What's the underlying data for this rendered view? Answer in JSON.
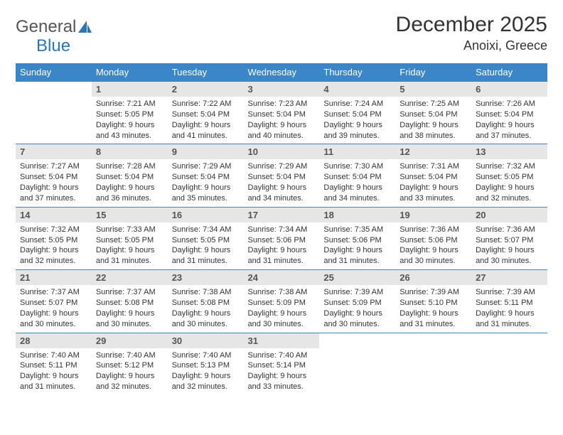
{
  "brand": {
    "text1": "General",
    "text2": "Blue"
  },
  "title": "December 2025",
  "location": "Anoixi, Greece",
  "colors": {
    "header_bg": "#3a86c8",
    "header_fg": "#ffffff",
    "daynum_bg": "#e6e6e6",
    "rule": "#3a86c8",
    "brand_gray": "#555555",
    "brand_blue": "#2a76b8"
  },
  "day_headers": [
    "Sunday",
    "Monday",
    "Tuesday",
    "Wednesday",
    "Thursday",
    "Friday",
    "Saturday"
  ],
  "weeks": [
    [
      null,
      {
        "n": "1",
        "sr": "7:21 AM",
        "ss": "5:05 PM",
        "dl": "9 hours and 43 minutes."
      },
      {
        "n": "2",
        "sr": "7:22 AM",
        "ss": "5:04 PM",
        "dl": "9 hours and 41 minutes."
      },
      {
        "n": "3",
        "sr": "7:23 AM",
        "ss": "5:04 PM",
        "dl": "9 hours and 40 minutes."
      },
      {
        "n": "4",
        "sr": "7:24 AM",
        "ss": "5:04 PM",
        "dl": "9 hours and 39 minutes."
      },
      {
        "n": "5",
        "sr": "7:25 AM",
        "ss": "5:04 PM",
        "dl": "9 hours and 38 minutes."
      },
      {
        "n": "6",
        "sr": "7:26 AM",
        "ss": "5:04 PM",
        "dl": "9 hours and 37 minutes."
      }
    ],
    [
      {
        "n": "7",
        "sr": "7:27 AM",
        "ss": "5:04 PM",
        "dl": "9 hours and 37 minutes."
      },
      {
        "n": "8",
        "sr": "7:28 AM",
        "ss": "5:04 PM",
        "dl": "9 hours and 36 minutes."
      },
      {
        "n": "9",
        "sr": "7:29 AM",
        "ss": "5:04 PM",
        "dl": "9 hours and 35 minutes."
      },
      {
        "n": "10",
        "sr": "7:29 AM",
        "ss": "5:04 PM",
        "dl": "9 hours and 34 minutes."
      },
      {
        "n": "11",
        "sr": "7:30 AM",
        "ss": "5:04 PM",
        "dl": "9 hours and 34 minutes."
      },
      {
        "n": "12",
        "sr": "7:31 AM",
        "ss": "5:04 PM",
        "dl": "9 hours and 33 minutes."
      },
      {
        "n": "13",
        "sr": "7:32 AM",
        "ss": "5:05 PM",
        "dl": "9 hours and 32 minutes."
      }
    ],
    [
      {
        "n": "14",
        "sr": "7:32 AM",
        "ss": "5:05 PM",
        "dl": "9 hours and 32 minutes."
      },
      {
        "n": "15",
        "sr": "7:33 AM",
        "ss": "5:05 PM",
        "dl": "9 hours and 31 minutes."
      },
      {
        "n": "16",
        "sr": "7:34 AM",
        "ss": "5:05 PM",
        "dl": "9 hours and 31 minutes."
      },
      {
        "n": "17",
        "sr": "7:34 AM",
        "ss": "5:06 PM",
        "dl": "9 hours and 31 minutes."
      },
      {
        "n": "18",
        "sr": "7:35 AM",
        "ss": "5:06 PM",
        "dl": "9 hours and 31 minutes."
      },
      {
        "n": "19",
        "sr": "7:36 AM",
        "ss": "5:06 PM",
        "dl": "9 hours and 30 minutes."
      },
      {
        "n": "20",
        "sr": "7:36 AM",
        "ss": "5:07 PM",
        "dl": "9 hours and 30 minutes."
      }
    ],
    [
      {
        "n": "21",
        "sr": "7:37 AM",
        "ss": "5:07 PM",
        "dl": "9 hours and 30 minutes."
      },
      {
        "n": "22",
        "sr": "7:37 AM",
        "ss": "5:08 PM",
        "dl": "9 hours and 30 minutes."
      },
      {
        "n": "23",
        "sr": "7:38 AM",
        "ss": "5:08 PM",
        "dl": "9 hours and 30 minutes."
      },
      {
        "n": "24",
        "sr": "7:38 AM",
        "ss": "5:09 PM",
        "dl": "9 hours and 30 minutes."
      },
      {
        "n": "25",
        "sr": "7:39 AM",
        "ss": "5:09 PM",
        "dl": "9 hours and 30 minutes."
      },
      {
        "n": "26",
        "sr": "7:39 AM",
        "ss": "5:10 PM",
        "dl": "9 hours and 31 minutes."
      },
      {
        "n": "27",
        "sr": "7:39 AM",
        "ss": "5:11 PM",
        "dl": "9 hours and 31 minutes."
      }
    ],
    [
      {
        "n": "28",
        "sr": "7:40 AM",
        "ss": "5:11 PM",
        "dl": "9 hours and 31 minutes."
      },
      {
        "n": "29",
        "sr": "7:40 AM",
        "ss": "5:12 PM",
        "dl": "9 hours and 32 minutes."
      },
      {
        "n": "30",
        "sr": "7:40 AM",
        "ss": "5:13 PM",
        "dl": "9 hours and 32 minutes."
      },
      {
        "n": "31",
        "sr": "7:40 AM",
        "ss": "5:14 PM",
        "dl": "9 hours and 33 minutes."
      },
      null,
      null,
      null
    ]
  ],
  "labels": {
    "sunrise": "Sunrise:",
    "sunset": "Sunset:",
    "daylight": "Daylight:"
  }
}
